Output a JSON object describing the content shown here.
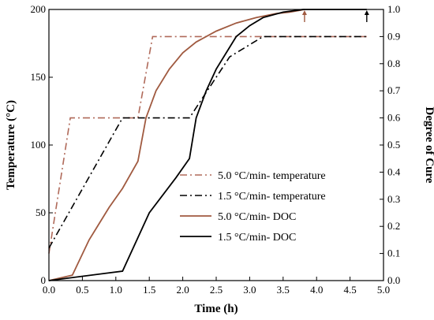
{
  "chart_data": {
    "type": "line",
    "xlabel": "Time (h)",
    "ylabel_left": "Temperature (°C)",
    "ylabel_right": "Degree of Cure",
    "xlim": [
      0.0,
      5.0
    ],
    "ylim_left": [
      0,
      200
    ],
    "ylim_right": [
      0.0,
      1.0
    ],
    "x_ticks": [
      "0.0",
      "0.5",
      "1.0",
      "1.5",
      "2.0",
      "2.5",
      "3.0",
      "3.5",
      "4.0",
      "4.5",
      "5.0"
    ],
    "y_left_ticks": [
      "0",
      "50",
      "100",
      "150",
      "200"
    ],
    "y_right_ticks": [
      "0.0",
      "0.1",
      "0.2",
      "0.3",
      "0.4",
      "0.5",
      "0.6",
      "0.7",
      "0.8",
      "0.9",
      "1.0"
    ],
    "grid": false,
    "legend_position": "right-center",
    "series": [
      {
        "name": "5.0 °C/min- temperature",
        "axis": "left",
        "style": "dash-dot",
        "color": "#b06a5a",
        "x": [
          0.0,
          0.32,
          1.33,
          1.55,
          4.75
        ],
        "y": [
          20,
          120,
          120,
          180,
          180
        ]
      },
      {
        "name": "1.5 °C/min- temperature",
        "axis": "left",
        "style": "dash-dot",
        "color": "#000000",
        "x": [
          0.0,
          1.1,
          2.1,
          2.3,
          2.7,
          3.2,
          4.75
        ],
        "y": [
          24,
          120,
          120,
          135,
          165,
          180,
          180
        ]
      },
      {
        "name": "5.0 °C/min- DOC",
        "axis": "right",
        "style": "solid",
        "color": "#a05a40",
        "x": [
          0.0,
          0.35,
          0.6,
          0.9,
          1.1,
          1.33,
          1.45,
          1.6,
          1.8,
          2.0,
          2.2,
          2.5,
          2.8,
          3.1,
          3.4,
          3.6,
          3.82
        ],
        "y": [
          0.0,
          0.02,
          0.15,
          0.27,
          0.34,
          0.44,
          0.6,
          0.7,
          0.78,
          0.84,
          0.88,
          0.92,
          0.95,
          0.97,
          0.985,
          0.99,
          1.0
        ]
      },
      {
        "name": "1.5 °C/min- DOC",
        "axis": "right",
        "style": "solid",
        "color": "#000000",
        "x": [
          0.0,
          1.1,
          1.5,
          1.9,
          2.1,
          2.2,
          2.35,
          2.5,
          2.65,
          2.8,
          3.0,
          3.2,
          3.5,
          3.8,
          4.0,
          4.75
        ],
        "y": [
          0.0,
          0.035,
          0.25,
          0.38,
          0.45,
          0.6,
          0.7,
          0.78,
          0.84,
          0.9,
          0.94,
          0.97,
          0.99,
          1.0,
          1.0,
          1.0
        ]
      }
    ],
    "annotations": [
      {
        "type": "arrow",
        "x": 3.82,
        "y_right": 1.0,
        "color": "#a05a40"
      },
      {
        "type": "arrow",
        "x": 4.75,
        "y_right": 1.0,
        "color": "#000000"
      }
    ]
  }
}
